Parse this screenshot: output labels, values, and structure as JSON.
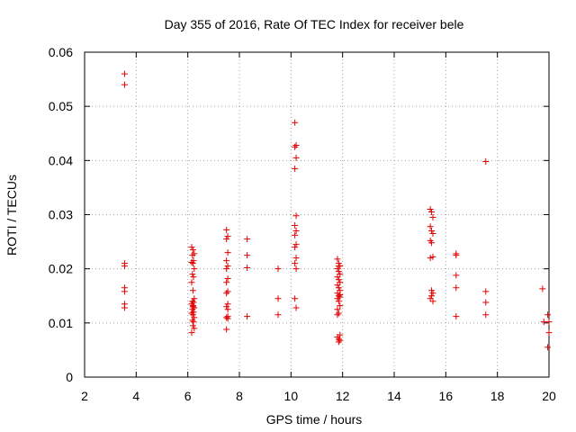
{
  "chart_data": {
    "type": "scatter",
    "title": "Day 355 of 2016, Rate Of TEC Index for receiver bele",
    "xlabel": "GPS time / hours",
    "ylabel": "ROTI / TECUs",
    "xlim": [
      2,
      20
    ],
    "ylim": [
      0,
      0.06
    ],
    "xticks": [
      2,
      4,
      6,
      8,
      10,
      12,
      14,
      16,
      18,
      20
    ],
    "yticks": [
      0,
      0.01,
      0.02,
      0.03,
      0.04,
      0.05,
      0.06
    ],
    "xtick_labels": [
      "2",
      "4",
      "6",
      "8",
      "10",
      "12",
      "14",
      "16",
      "18",
      "20"
    ],
    "ytick_labels": [
      "0",
      "0.01",
      "0.02",
      "0.03",
      "0.04",
      "0.05",
      "0.06"
    ],
    "grid": true,
    "marker": "plus",
    "color": "#e00000",
    "series": [
      {
        "x": [
          3.55,
          3.55,
          3.55,
          3.55,
          3.55,
          3.55,
          3.55,
          3.55,
          6.15,
          6.2,
          6.25,
          6.18,
          6.22,
          6.15,
          6.2,
          6.25,
          6.18,
          6.22,
          6.15,
          6.2,
          6.25,
          6.18,
          6.22,
          6.15,
          6.2,
          6.25,
          6.18,
          6.22,
          6.15,
          6.2,
          6.25,
          6.18,
          6.22,
          6.2,
          6.25,
          6.15,
          6.2,
          7.5,
          7.55,
          7.5,
          7.55,
          7.5,
          7.55,
          7.5,
          7.55,
          7.5,
          7.55,
          7.5,
          7.55,
          7.5,
          7.55,
          7.5,
          7.55,
          7.5,
          7.55,
          8.3,
          8.3,
          8.3,
          8.3,
          9.5,
          9.5,
          9.5,
          10.15,
          10.2,
          10.15,
          10.2,
          10.15,
          10.2,
          10.15,
          10.2,
          10.15,
          10.2,
          10.15,
          10.2,
          10.15,
          10.2,
          10.15,
          10.2,
          11.8,
          11.85,
          11.9,
          11.8,
          11.85,
          11.9,
          11.8,
          11.85,
          11.9,
          11.8,
          11.85,
          11.9,
          11.8,
          11.85,
          11.9,
          11.8,
          11.85,
          11.9,
          11.8,
          11.85,
          11.9,
          11.8,
          11.85,
          11.9,
          11.85,
          11.8,
          11.9,
          11.85,
          15.4,
          15.45,
          15.5,
          15.4,
          15.45,
          15.5,
          15.4,
          15.45,
          15.5,
          15.4,
          15.45,
          15.5,
          15.45,
          15.4,
          15.5,
          16.4,
          16.4,
          16.4,
          16.4,
          16.4,
          17.55,
          17.55,
          17.55,
          17.55,
          19.75,
          19.8,
          19.95,
          20.0,
          20.0,
          19.95
        ],
        "y": [
          0.056,
          0.054,
          0.021,
          0.0205,
          0.0165,
          0.0158,
          0.0135,
          0.0128,
          0.024,
          0.0235,
          0.0228,
          0.0225,
          0.0215,
          0.0212,
          0.021,
          0.02,
          0.019,
          0.0185,
          0.0175,
          0.016,
          0.0145,
          0.014,
          0.0138,
          0.0135,
          0.013,
          0.0128,
          0.0125,
          0.012,
          0.0118,
          0.0115,
          0.011,
          0.0105,
          0.0102,
          0.0095,
          0.009,
          0.0082,
          0.0132,
          0.0272,
          0.026,
          0.0255,
          0.023,
          0.0215,
          0.0205,
          0.02,
          0.0182,
          0.0175,
          0.0158,
          0.0155,
          0.0135,
          0.013,
          0.0112,
          0.011,
          0.0108,
          0.0088,
          0.0125,
          0.0255,
          0.0225,
          0.0202,
          0.0112,
          0.02,
          0.0145,
          0.0115,
          0.047,
          0.0428,
          0.0425,
          0.0405,
          0.0385,
          0.0298,
          0.028,
          0.027,
          0.0262,
          0.0245,
          0.024,
          0.022,
          0.021,
          0.02,
          0.0145,
          0.0128,
          0.0218,
          0.021,
          0.0205,
          0.02,
          0.0195,
          0.019,
          0.0185,
          0.018,
          0.0175,
          0.017,
          0.0165,
          0.016,
          0.0155,
          0.015,
          0.0148,
          0.0145,
          0.014,
          0.0132,
          0.0125,
          0.0118,
          0.0078,
          0.0074,
          0.007,
          0.0068,
          0.0065,
          0.0115,
          0.0152,
          0.0205,
          0.031,
          0.0305,
          0.0295,
          0.0278,
          0.027,
          0.0265,
          0.0252,
          0.0248,
          0.0222,
          0.022,
          0.016,
          0.0155,
          0.015,
          0.0145,
          0.014,
          0.0228,
          0.0225,
          0.0188,
          0.0165,
          0.0112,
          0.0398,
          0.0158,
          0.0138,
          0.0115,
          0.0163,
          0.0102,
          0.0115,
          0.0102,
          0.0082,
          0.0055
        ]
      }
    ]
  }
}
